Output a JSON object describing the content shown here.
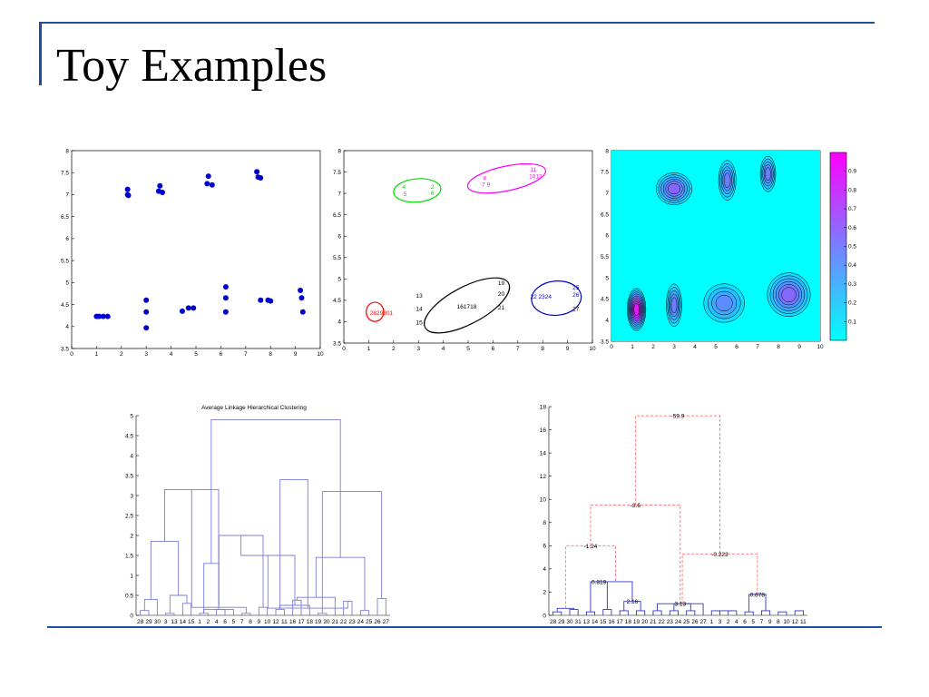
{
  "slide": {
    "title": "Toy Examples"
  },
  "colors": {
    "rule": "#1f4e9e",
    "points": "#0000cc",
    "dendrogram": "#7b7bdc",
    "merge_dashed": "#ff6f6f",
    "heatmap_bg": "#00ffff",
    "heatmap_peak": "#ff00ff"
  },
  "chart_data": [
    {
      "id": "scatter",
      "type": "scatter",
      "xlim": [
        0,
        10
      ],
      "ylim": [
        3.5,
        8
      ],
      "xticks": [
        0,
        1,
        2,
        3,
        4,
        5,
        6,
        7,
        8,
        9,
        10
      ],
      "yticks": [
        3.5,
        4,
        4.5,
        5,
        5.5,
        6,
        6.5,
        7,
        7.5,
        8
      ],
      "grid": false,
      "points": [
        [
          1.0,
          4.23
        ],
        [
          1.1,
          4.23
        ],
        [
          1.27,
          4.23
        ],
        [
          1.45,
          4.23
        ],
        [
          2.25,
          7.12
        ],
        [
          2.25,
          7.0
        ],
        [
          2.28,
          6.98
        ],
        [
          3.0,
          4.6
        ],
        [
          3.0,
          4.33
        ],
        [
          3.0,
          3.97
        ],
        [
          3.5,
          7.08
        ],
        [
          3.55,
          7.2
        ],
        [
          3.65,
          7.05
        ],
        [
          4.45,
          4.35
        ],
        [
          4.7,
          4.42
        ],
        [
          4.9,
          4.42
        ],
        [
          5.45,
          7.25
        ],
        [
          5.5,
          7.42
        ],
        [
          5.65,
          7.22
        ],
        [
          6.2,
          4.9
        ],
        [
          6.2,
          4.65
        ],
        [
          6.2,
          4.33
        ],
        [
          7.45,
          7.52
        ],
        [
          7.5,
          7.4
        ],
        [
          7.6,
          7.38
        ],
        [
          7.6,
          4.6
        ],
        [
          7.9,
          4.6
        ],
        [
          8.0,
          4.58
        ],
        [
          9.2,
          4.82
        ],
        [
          9.25,
          4.65
        ],
        [
          9.3,
          4.33
        ]
      ]
    },
    {
      "id": "clusters",
      "type": "scatter",
      "xlim": [
        0,
        10
      ],
      "ylim": [
        3.5,
        8
      ],
      "xticks": [
        0,
        1,
        2,
        3,
        4,
        5,
        6,
        7,
        8,
        9,
        10
      ],
      "yticks": [
        3.5,
        4,
        4.5,
        5,
        5.5,
        6,
        6.5,
        7,
        7.5,
        8
      ],
      "grid": false,
      "ellipses": [
        {
          "cx": 1.25,
          "cy": 4.23,
          "rx": 0.35,
          "ry": 0.14,
          "angle": 0,
          "color": "#ff0000"
        },
        {
          "cx": 2.95,
          "cy": 7.07,
          "rx": 0.95,
          "ry": 0.17,
          "angle": 5,
          "color": "#00dd00"
        },
        {
          "cx": 6.55,
          "cy": 7.35,
          "rx": 1.6,
          "ry": 0.18,
          "angle": 12,
          "color": "#ff00ff"
        },
        {
          "cx": 4.95,
          "cy": 4.38,
          "rx": 1.9,
          "ry": 0.27,
          "angle": 28,
          "color": "#000000"
        },
        {
          "cx": 8.55,
          "cy": 4.55,
          "rx": 1.0,
          "ry": 0.25,
          "angle": 5,
          "color": "#0000cc"
        }
      ],
      "labels": [
        {
          "text": "2829301",
          "x": 1.05,
          "y": 4.2,
          "color": "#ff0000"
        },
        {
          "text": "4",
          "x": 2.35,
          "y": 7.15,
          "color": "#00cc00"
        },
        {
          "text": "5",
          "x": 2.4,
          "y": 6.98,
          "color": "#00cc00"
        },
        {
          "text": "2",
          "x": 3.5,
          "y": 7.15,
          "color": "#00cc00"
        },
        {
          "text": "6",
          "x": 3.5,
          "y": 7.0,
          "color": "#00cc00"
        },
        {
          "text": "8",
          "x": 5.6,
          "y": 7.35,
          "color": "#ff00ff"
        },
        {
          "text": "7 9",
          "x": 5.55,
          "y": 7.2,
          "color": "#ff00ff"
        },
        {
          "text": "11",
          "x": 7.5,
          "y": 7.55,
          "color": "#ff00ff"
        },
        {
          "text": "1012",
          "x": 7.45,
          "y": 7.4,
          "color": "#ff00ff"
        },
        {
          "text": "13",
          "x": 2.9,
          "y": 4.6,
          "color": "#000000"
        },
        {
          "text": "14",
          "x": 2.9,
          "y": 4.3,
          "color": "#000000"
        },
        {
          "text": "15",
          "x": 2.9,
          "y": 3.98,
          "color": "#000000"
        },
        {
          "text": "161718",
          "x": 4.55,
          "y": 4.35,
          "color": "#000000"
        },
        {
          "text": "19",
          "x": 6.2,
          "y": 4.9,
          "color": "#000000"
        },
        {
          "text": "20",
          "x": 6.2,
          "y": 4.65,
          "color": "#000000"
        },
        {
          "text": "21",
          "x": 6.2,
          "y": 4.33,
          "color": "#000000"
        },
        {
          "text": "22 2324",
          "x": 7.5,
          "y": 4.58,
          "color": "#0000cc"
        },
        {
          "text": "25",
          "x": 9.2,
          "y": 4.8,
          "color": "#0000cc"
        },
        {
          "text": "26",
          "x": 9.2,
          "y": 4.63,
          "color": "#0000cc"
        },
        {
          "text": "27",
          "x": 9.2,
          "y": 4.3,
          "color": "#000000"
        }
      ]
    },
    {
      "id": "density",
      "type": "heatmap",
      "xlim": [
        0,
        10
      ],
      "ylim": [
        3.5,
        8
      ],
      "xticks": [
        0,
        1,
        2,
        3,
        4,
        5,
        6,
        7,
        8,
        9,
        10
      ],
      "yticks": [
        3.5,
        4,
        4.5,
        5,
        5.5,
        6,
        6.5,
        7,
        7.5,
        8
      ],
      "colorbar_ticks": [
        0.1,
        0.2,
        0.3,
        0.4,
        0.5,
        0.6,
        0.7,
        0.8,
        0.9
      ],
      "modes": [
        {
          "cx": 1.2,
          "cy": 4.25,
          "peak": 0.9,
          "sx": 0.25,
          "sy": 0.28
        },
        {
          "cx": 3.0,
          "cy": 4.35,
          "peak": 0.45,
          "sx": 0.22,
          "sy": 0.3
        },
        {
          "cx": 5.4,
          "cy": 4.4,
          "peak": 0.4,
          "sx": 0.6,
          "sy": 0.28
        },
        {
          "cx": 8.5,
          "cy": 4.6,
          "peak": 0.55,
          "sx": 0.6,
          "sy": 0.3
        },
        {
          "cx": 3.0,
          "cy": 7.1,
          "peak": 0.55,
          "sx": 0.5,
          "sy": 0.22
        },
        {
          "cx": 5.55,
          "cy": 7.3,
          "peak": 0.45,
          "sx": 0.25,
          "sy": 0.28
        },
        {
          "cx": 7.5,
          "cy": 7.45,
          "peak": 0.45,
          "sx": 0.22,
          "sy": 0.25
        }
      ]
    },
    {
      "id": "dendrogram_avg",
      "type": "dendrogram",
      "title": "Average Linkage Hierarchical Clustering",
      "ylim": [
        0,
        5
      ],
      "yticks": [
        0,
        0.5,
        1,
        1.5,
        2,
        2.5,
        3,
        3.5,
        4,
        4.5,
        5
      ],
      "leaves": [
        "28",
        "29",
        "30",
        "3",
        "13",
        "14",
        "15",
        "1",
        "2",
        "4",
        "6",
        "5",
        "7",
        "8",
        "9",
        "10",
        "12",
        "11",
        "16",
        "17",
        "18",
        "19",
        "20",
        "21",
        "22",
        "23",
        "24",
        "25",
        "26",
        "27"
      ],
      "merges": [
        [
          0,
          1,
          0.12
        ],
        [
          30,
          2,
          0.4
        ],
        [
          3,
          4,
          0.05
        ],
        [
          5,
          6,
          0.3
        ],
        [
          32,
          33,
          0.5
        ],
        [
          31,
          34,
          1.85
        ],
        [
          7,
          8,
          0.05
        ],
        [
          9,
          10,
          0.15
        ],
        [
          11,
          36,
          0.15
        ],
        [
          36,
          38,
          1.3
        ],
        [
          35,
          38,
          3.15
        ],
        [
          12,
          13,
          0.05
        ],
        [
          14,
          15,
          0.2
        ],
        [
          40,
          41,
          0.2
        ],
        [
          16,
          17,
          0.15
        ],
        [
          42,
          43,
          2.0
        ],
        [
          18,
          19,
          0.38
        ],
        [
          20,
          44,
          0.25
        ],
        [
          21,
          22,
          0.05
        ],
        [
          46,
          23,
          0.45
        ],
        [
          45,
          47,
          1.5
        ],
        [
          24,
          25,
          0.35
        ],
        [
          26,
          27,
          0.12
        ],
        [
          28,
          29,
          0.42
        ],
        [
          50,
          51,
          0.18
        ],
        [
          49,
          52,
          1.45
        ],
        [
          48,
          53,
          3.1
        ],
        [
          44,
          54,
          3.4
        ],
        [
          39,
          55,
          4.9
        ]
      ],
      "color": "#7b7bdc"
    },
    {
      "id": "dendrogram_merge",
      "type": "dendrogram",
      "ylim": [
        0,
        18
      ],
      "yticks": [
        0,
        2,
        4,
        6,
        8,
        10,
        12,
        14,
        16,
        18
      ],
      "leaves": [
        "28",
        "29",
        "30",
        "31",
        "13",
        "14",
        "15",
        "16",
        "17",
        "18",
        "19",
        "20",
        "21",
        "22",
        "23",
        "24",
        "25",
        "26",
        "27",
        "1",
        "3",
        "2",
        "4",
        "6",
        "5",
        "7",
        "9",
        "8",
        "10",
        "12",
        "11"
      ],
      "merge_labels": [
        {
          "text": "-59.9",
          "height": 17.2
        },
        {
          "text": "-3.6",
          "height": 9.5
        },
        {
          "text": "-1.24",
          "height": 6.0
        },
        {
          "text": "0.819",
          "height": 2.9
        },
        {
          "text": "2.16",
          "height": 1.2
        },
        {
          "text": "3.13",
          "height": 1.0
        },
        {
          "text": "-0.223",
          "height": 5.3
        },
        {
          "text": "0.878",
          "height": 1.8
        }
      ],
      "color_solid": "#3535c6",
      "color_dashed": "#ff6f6f"
    }
  ]
}
